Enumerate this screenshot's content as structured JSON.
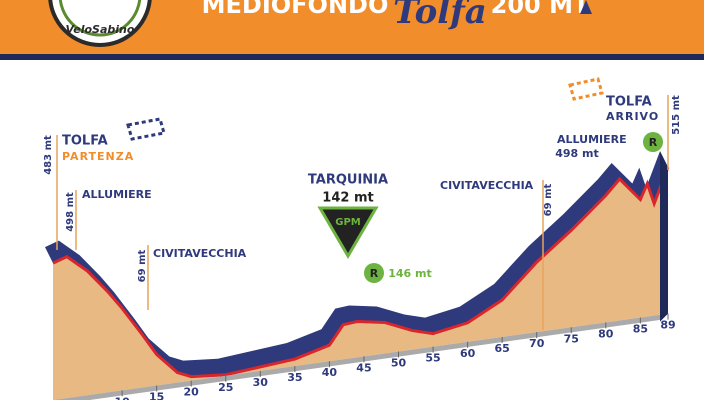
{
  "header": {
    "title_left": "MEDIOFONDO",
    "title_script": "Tolfa",
    "title_right": "200 MT",
    "logo": "VeloSabino"
  },
  "chart_data": {
    "type": "area",
    "x": [
      0,
      2,
      5,
      8,
      10,
      13,
      15,
      18,
      20,
      25,
      30,
      35,
      40,
      42,
      44,
      48,
      52,
      55,
      60,
      65,
      70,
      75,
      80,
      82,
      85,
      86,
      87,
      89
    ],
    "values": [
      483,
      498,
      440,
      360,
      300,
      200,
      130,
      60,
      40,
      30,
      40,
      50,
      80,
      142,
      146,
      130,
      90,
      70,
      90,
      150,
      260,
      350,
      450,
      498,
      420,
      470,
      400,
      515
    ],
    "xlim": [
      0,
      89
    ],
    "xticks": [
      10,
      15,
      20,
      25,
      30,
      35,
      40,
      45,
      50,
      55,
      60,
      65,
      70,
      75,
      80,
      85,
      89
    ],
    "colors": {
      "face": "#e9b984",
      "top": "#2f3a7c",
      "line": "#d8262c"
    },
    "annotations": [
      {
        "name": "TOLFA",
        "sub": "PARTENZA",
        "elev": "483 mt"
      },
      {
        "name": "ALLUMIERE",
        "elev": "498 mt"
      },
      {
        "name": "CIVITAVECCHIA",
        "elev": "69 mt"
      },
      {
        "name": "TARQUINIA",
        "elev": "142 mt",
        "badge": "GPM"
      },
      {
        "badge": "R",
        "elev": "146 mt"
      },
      {
        "name": "CIVITAVECCHIA",
        "elev": "69 mt"
      },
      {
        "name": "ALLUMIERE",
        "elev": "498 mt"
      },
      {
        "badge": "R"
      },
      {
        "name": "TOLFA",
        "sub": "ARRIVO",
        "elev": "515 mt"
      }
    ]
  }
}
